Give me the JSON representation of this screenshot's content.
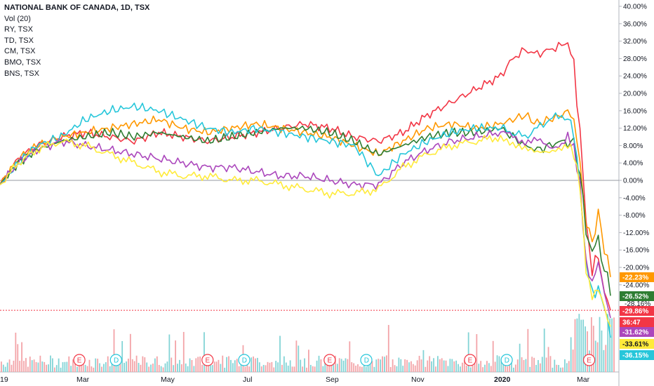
{
  "legend": {
    "title": "NATIONAL BANK OF CANADA, 1D, TSX",
    "items": [
      "Vol (20)",
      "RY, TSX",
      "TD, TSX",
      "CM, TSX",
      "BMO, TSX",
      "BNS, TSX"
    ]
  },
  "countdown": "36:47",
  "chart_data": {
    "type": "line",
    "yaxis": {
      "unit": "%",
      "range": [
        -38,
        40
      ],
      "ticks": [
        "40.00%",
        "36.00%",
        "32.00%",
        "28.00%",
        "24.00%",
        "20.00%",
        "16.00%",
        "12.00%",
        "8.00%",
        "4.00%",
        "0.00%",
        "-4.00%",
        "-8.00%",
        "-12.00%",
        "-16.00%",
        "-20.00%",
        "-24.00%"
      ]
    },
    "xaxis": {
      "ticks": [
        "19",
        "Mar",
        "May",
        "Jul",
        "Sep",
        "Nov",
        "2020",
        "Mar"
      ],
      "range": [
        0,
        100
      ]
    },
    "series": [
      {
        "name": "NATIONAL BANK OF CANADA",
        "color": "#f23645",
        "last": -29.86,
        "label": "-29.86%",
        "x": [
          0,
          3,
          6,
          10,
          14,
          18,
          22,
          26,
          30,
          34,
          38,
          42,
          46,
          50,
          54,
          58,
          62,
          66,
          70,
          74,
          78,
          82,
          84,
          86,
          88,
          90,
          92,
          93,
          94,
          95,
          96,
          97,
          98,
          99,
          100
        ],
        "y": [
          -1,
          5,
          8,
          10,
          11,
          10,
          9,
          11,
          10,
          9,
          10,
          11,
          12,
          13,
          12,
          10,
          9,
          11,
          15,
          18,
          21,
          24,
          28,
          30,
          29,
          30,
          31,
          32,
          26,
          12,
          -10,
          -20,
          -18,
          -25,
          -29.86
        ]
      },
      {
        "name": "RY",
        "color": "#ff9800",
        "last": -22.23,
        "label": "-22.23%",
        "x": [
          0,
          3,
          6,
          10,
          14,
          18,
          22,
          26,
          30,
          34,
          38,
          42,
          46,
          50,
          54,
          58,
          62,
          66,
          70,
          74,
          78,
          82,
          84,
          86,
          88,
          90,
          92,
          93,
          94,
          95,
          96,
          97,
          98,
          99,
          100
        ],
        "y": [
          -1,
          5,
          8,
          10,
          11,
          12,
          13,
          14,
          12,
          11,
          12,
          13,
          12,
          11,
          10,
          8,
          6,
          9,
          12,
          13,
          12,
          13,
          14,
          15,
          13,
          14,
          15,
          16,
          14,
          4,
          -10,
          -14,
          -8,
          -15,
          -22.23
        ]
      },
      {
        "name": "TD",
        "color": "#2e7d32",
        "last": -26.52,
        "label": "-26.52%",
        "x": [
          0,
          3,
          6,
          10,
          14,
          18,
          22,
          26,
          30,
          34,
          38,
          42,
          46,
          50,
          54,
          58,
          62,
          66,
          70,
          74,
          78,
          82,
          84,
          86,
          88,
          90,
          92,
          93,
          94,
          95,
          96,
          97,
          98,
          99,
          100
        ],
        "y": [
          -1,
          4,
          7,
          9,
          10,
          11,
          10,
          11,
          10,
          9,
          10,
          11,
          12,
          12,
          11,
          9,
          6,
          8,
          10,
          11,
          11,
          12,
          10,
          8,
          7,
          8,
          9,
          9,
          8,
          2,
          -12,
          -16,
          -14,
          -20,
          -26.52
        ]
      },
      {
        "name": "CM",
        "color": "#26c6da",
        "last": -36.15,
        "label": "-36.15%",
        "x": [
          0,
          3,
          6,
          10,
          14,
          18,
          22,
          26,
          30,
          34,
          38,
          42,
          46,
          50,
          54,
          58,
          62,
          66,
          70,
          74,
          78,
          82,
          84,
          86,
          88,
          90,
          92,
          93,
          94,
          95,
          96,
          97,
          98,
          99,
          100
        ],
        "y": [
          -1,
          4,
          8,
          10,
          14,
          16,
          17,
          16,
          14,
          12,
          11,
          12,
          11,
          10,
          9,
          8,
          1,
          6,
          9,
          11,
          12,
          12,
          11,
          10,
          12,
          14,
          15,
          14,
          10,
          0,
          -20,
          -26,
          -24,
          -30,
          -36.15
        ]
      },
      {
        "name": "BMO",
        "color": "#ab47bc",
        "last": -31.62,
        "label": "-31.62%",
        "x": [
          0,
          3,
          6,
          10,
          14,
          18,
          22,
          26,
          30,
          34,
          38,
          42,
          46,
          50,
          54,
          58,
          62,
          66,
          70,
          74,
          78,
          82,
          84,
          86,
          88,
          90,
          92,
          93,
          94,
          95,
          96,
          97,
          98,
          99,
          100
        ],
        "y": [
          -1,
          4,
          7,
          9,
          8,
          7,
          6,
          5,
          4,
          3,
          3,
          2,
          1,
          1,
          0,
          -1,
          -1,
          4,
          7,
          9,
          10,
          11,
          10,
          9,
          9,
          8,
          8,
          9,
          7,
          0,
          -18,
          -24,
          -20,
          -26,
          -31.62
        ]
      },
      {
        "name": "BNS",
        "color": "#ffeb3b",
        "last": -33.61,
        "label": "-33.61%",
        "x": [
          0,
          3,
          6,
          10,
          14,
          18,
          22,
          26,
          30,
          34,
          38,
          42,
          46,
          50,
          54,
          58,
          62,
          66,
          70,
          74,
          78,
          82,
          84,
          86,
          88,
          90,
          92,
          93,
          94,
          95,
          96,
          97,
          98,
          99,
          100
        ],
        "y": [
          -1,
          4,
          7,
          9,
          8,
          6,
          4,
          2,
          1,
          1,
          0,
          0,
          -1,
          -2,
          -3,
          -3,
          -2,
          3,
          6,
          8,
          9,
          10,
          8,
          7,
          6,
          6,
          7,
          8,
          6,
          -1,
          -20,
          -26,
          -24,
          -28,
          -33.61
        ]
      }
    ],
    "partial_labels": [
      "-28.16%"
    ],
    "events": [
      {
        "type": "E",
        "x": 13
      },
      {
        "type": "D",
        "x": 19
      },
      {
        "type": "E",
        "x": 34
      },
      {
        "type": "D",
        "x": 40
      },
      {
        "type": "E",
        "x": 54
      },
      {
        "type": "D",
        "x": 60
      },
      {
        "type": "E",
        "x": 77
      },
      {
        "type": "D",
        "x": 83
      },
      {
        "type": "E",
        "x": 96.5
      }
    ]
  }
}
